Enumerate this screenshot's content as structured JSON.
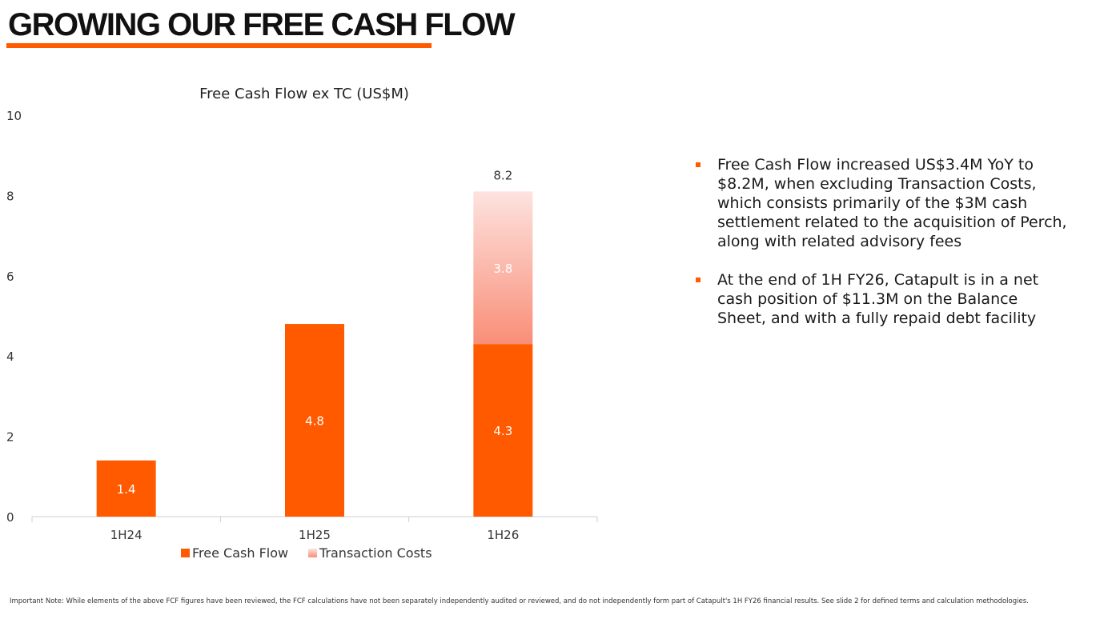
{
  "page": {
    "title": "GROWING OUR FREE CASH FLOW",
    "accent_color": "#ff5a00"
  },
  "chart_data": {
    "type": "bar",
    "stacked": true,
    "title": "Free Cash Flow ex TC (US$M)",
    "categories": [
      "1H24",
      "1H25",
      "1H26"
    ],
    "series": [
      {
        "name": "Free Cash Flow",
        "values": [
          1.4,
          4.8,
          4.3
        ],
        "labels": [
          "1.4",
          "4.8",
          "4.3"
        ],
        "color": "#ff5a00"
      },
      {
        "name": "Transaction Costs",
        "values": [
          null,
          null,
          3.8
        ],
        "labels": [
          "",
          "",
          "3.8"
        ],
        "color_top": "#fde3df",
        "color_bottom": "#f98e78"
      }
    ],
    "totals": [
      {
        "category": "1H26",
        "value": 8.2,
        "label": "8.2"
      }
    ],
    "ylim": [
      0,
      10
    ],
    "yticks": [
      "0",
      "2",
      "4",
      "6",
      "8",
      "10"
    ],
    "grid": false,
    "legend_position": "bottom"
  },
  "bullets": [
    "Free Cash Flow increased US$3.4M YoY to $8.2M, when excluding Transaction Costs, which consists primarily of the $3M cash settlement related to the acquisition of Perch, along with related advisory fees",
    "At the end of 1H FY26, Catapult is in a net cash position of $11.3M on the Balance Sheet, and with a fully repaid debt facility"
  ],
  "footnote": "Important Note: While elements of the above FCF figures have been reviewed, the FCF calculations have not been separately independently audited or reviewed, and do not independently form part of Catapult's 1H FY26 financial results. See slide 2 for defined terms and calculation methodologies."
}
